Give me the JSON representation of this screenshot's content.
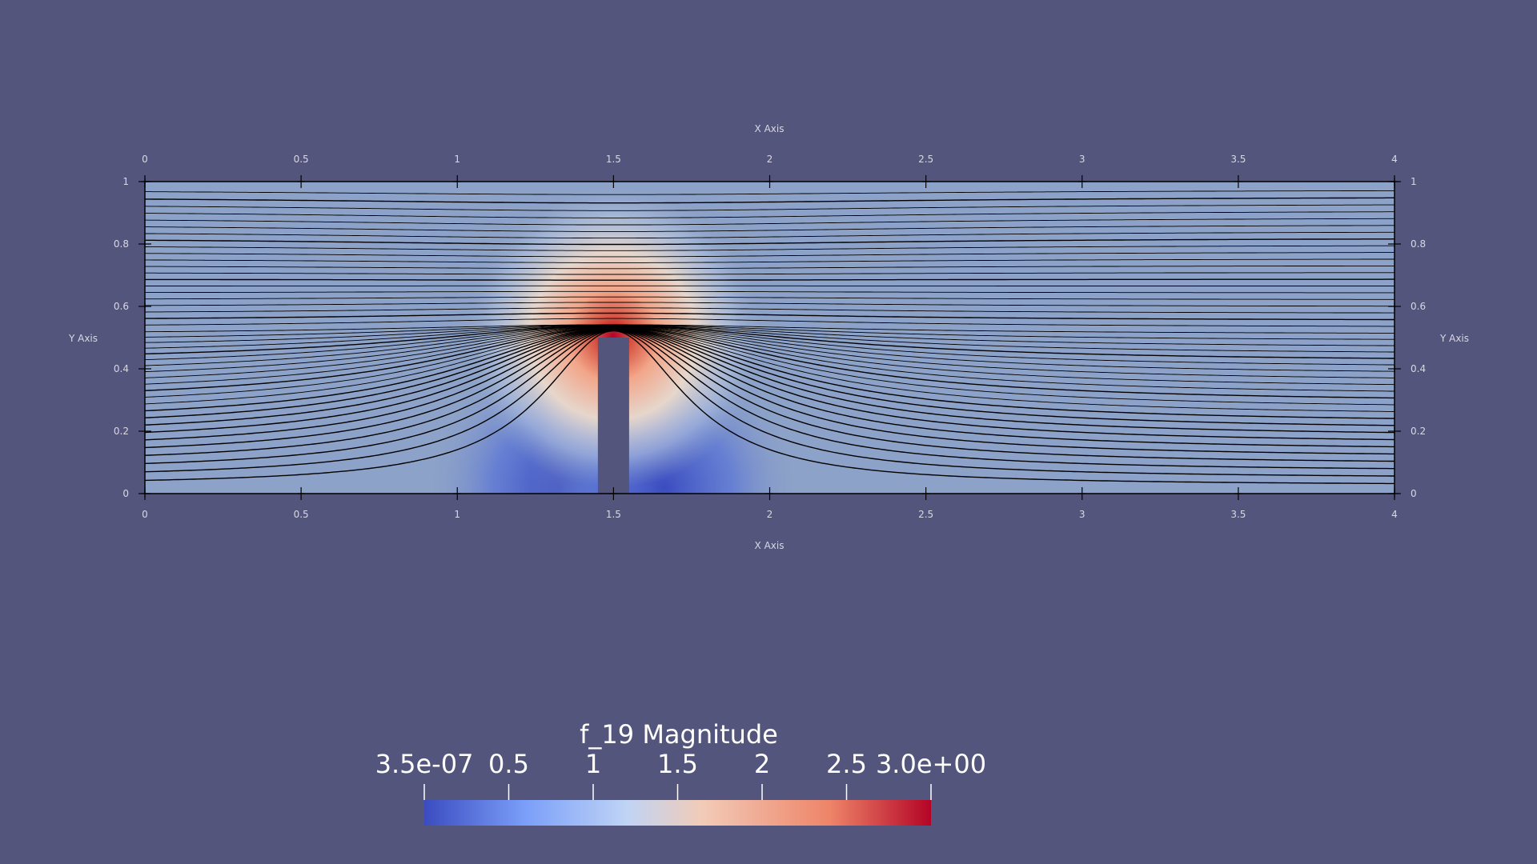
{
  "plot": {
    "x_axis_title": "X Axis",
    "y_axis_title": "Y Axis",
    "x_ticks": [
      "0",
      "0.5",
      "1",
      "1.5",
      "2",
      "2.5",
      "3",
      "3.5",
      "4"
    ],
    "y_ticks": [
      "0",
      "0.2",
      "0.4",
      "0.6",
      "0.8",
      "1"
    ],
    "x_range": [
      0,
      4
    ],
    "y_range": [
      0,
      1
    ],
    "obstacle": {
      "x_min": 1.45,
      "x_max": 1.55,
      "y_min": 0,
      "y_max": 0.5
    }
  },
  "colorbar": {
    "title": "f_19 Magnitude",
    "labels": [
      "3.5e-07",
      "0.5",
      "1",
      "1.5",
      "2",
      "2.5",
      "3.0e+00"
    ],
    "range": [
      3.5e-07,
      3.0
    ],
    "colormap": [
      "#3b4cc0",
      "#7b9ff9",
      "#c0d4f5",
      "#f2cbb7",
      "#ee8468",
      "#b40426"
    ]
  },
  "colors": {
    "background": "#54557c",
    "field_base": "#8da2c8",
    "streamline": "#000000"
  }
}
